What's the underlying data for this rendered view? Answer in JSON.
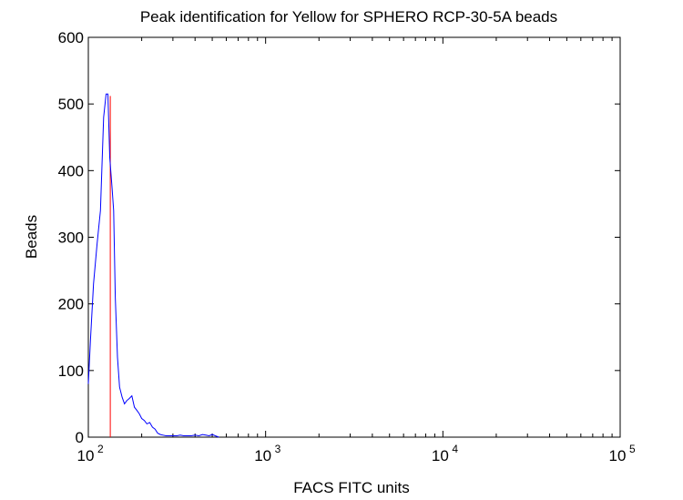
{
  "chart_data": {
    "type": "line",
    "title": "Peak identification for Yellow for SPHERO RCP-30-5A beads",
    "xlabel": "FACS FITC units",
    "ylabel": "Beads",
    "x_scale": "log",
    "xlim": [
      100,
      100000
    ],
    "ylim": [
      0,
      600
    ],
    "x_ticks": [
      {
        "value": 100,
        "base": "10",
        "exp": "2"
      },
      {
        "value": 1000,
        "base": "10",
        "exp": "3"
      },
      {
        "value": 10000,
        "base": "10",
        "exp": "4"
      },
      {
        "value": 100000,
        "base": "10",
        "exp": "5"
      }
    ],
    "y_ticks": [
      "0",
      "100",
      "200",
      "300",
      "400",
      "500",
      "600"
    ],
    "grid": false,
    "series": [
      {
        "color": "#0000ff",
        "x": [
          100,
          103,
          107,
          112,
          117,
          122,
          126,
          129,
          132,
          136,
          139,
          142,
          146,
          150,
          155,
          160,
          165,
          170,
          176,
          182,
          188,
          194,
          200,
          207,
          214,
          222,
          230,
          238,
          246,
          255,
          264,
          274,
          284,
          294,
          305,
          316,
          330,
          345,
          360,
          380,
          400,
          420,
          440,
          460,
          480,
          500,
          520,
          545
        ],
        "y": [
          80,
          150,
          230,
          290,
          340,
          480,
          515,
          515,
          420,
          375,
          340,
          210,
          120,
          75,
          60,
          50,
          55,
          58,
          62,
          45,
          40,
          35,
          28,
          25,
          20,
          22,
          15,
          12,
          6,
          4,
          3,
          2,
          2,
          2,
          2,
          2,
          3,
          2,
          2,
          2,
          3,
          2,
          4,
          3,
          2,
          4,
          2,
          0
        ]
      }
    ],
    "markers": [
      {
        "type": "vline",
        "x": 133,
        "color": "#ff0000"
      }
    ]
  }
}
